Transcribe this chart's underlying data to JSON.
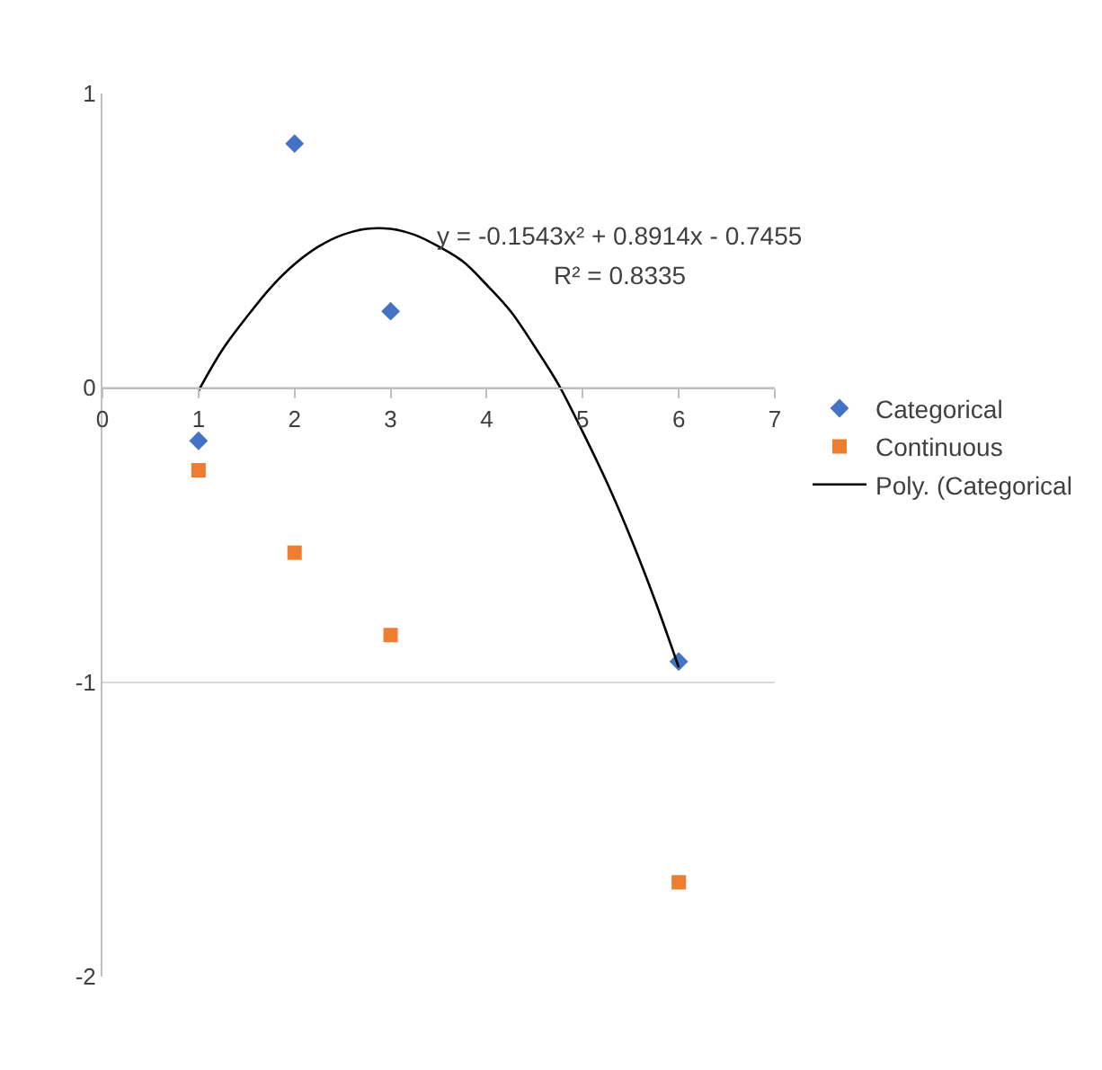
{
  "chart_data": {
    "type": "scatter",
    "xlim": [
      0,
      7
    ],
    "xticks": [
      0,
      1,
      2,
      3,
      4,
      5,
      6,
      7
    ],
    "ylim": [
      -2,
      1
    ],
    "yticks": [
      -2,
      -1,
      0,
      1
    ],
    "grid": "y",
    "legend": "right",
    "annotations": [
      "y = -0.1543x² + 0.8914x - 0.7455",
      "R² = 0.8335"
    ],
    "series": [
      {
        "name": "Categorical",
        "type": "scatter",
        "marker": "diamond",
        "color": "#4472c4",
        "x": [
          1,
          2,
          3,
          6
        ],
        "values": [
          -0.18,
          0.83,
          0.26,
          -0.93
        ]
      },
      {
        "name": "Continuous",
        "type": "scatter",
        "marker": "square",
        "color": "#ed7d31",
        "x": [
          1,
          2,
          3,
          6
        ],
        "values": [
          -0.28,
          -0.56,
          -0.84,
          -1.68
        ]
      },
      {
        "name": "Poly. (Categorical",
        "type": "line",
        "line_style": "solid",
        "marker": "none",
        "color": "#000000",
        "x": [
          1,
          1.25,
          1.5,
          1.75,
          2,
          2.25,
          2.5,
          2.75,
          3,
          3.25,
          3.5,
          3.75,
          4,
          4.25,
          4.5,
          4.75,
          5,
          5.25,
          5.5,
          5.75,
          6
        ],
        "values": [
          -0.01,
          0.13,
          0.24,
          0.34,
          0.42,
          0.48,
          0.52,
          0.54,
          0.54,
          0.52,
          0.48,
          0.43,
          0.35,
          0.26,
          0.14,
          0.01,
          -0.15,
          -0.32,
          -0.51,
          -0.72,
          -0.95
        ]
      }
    ]
  }
}
